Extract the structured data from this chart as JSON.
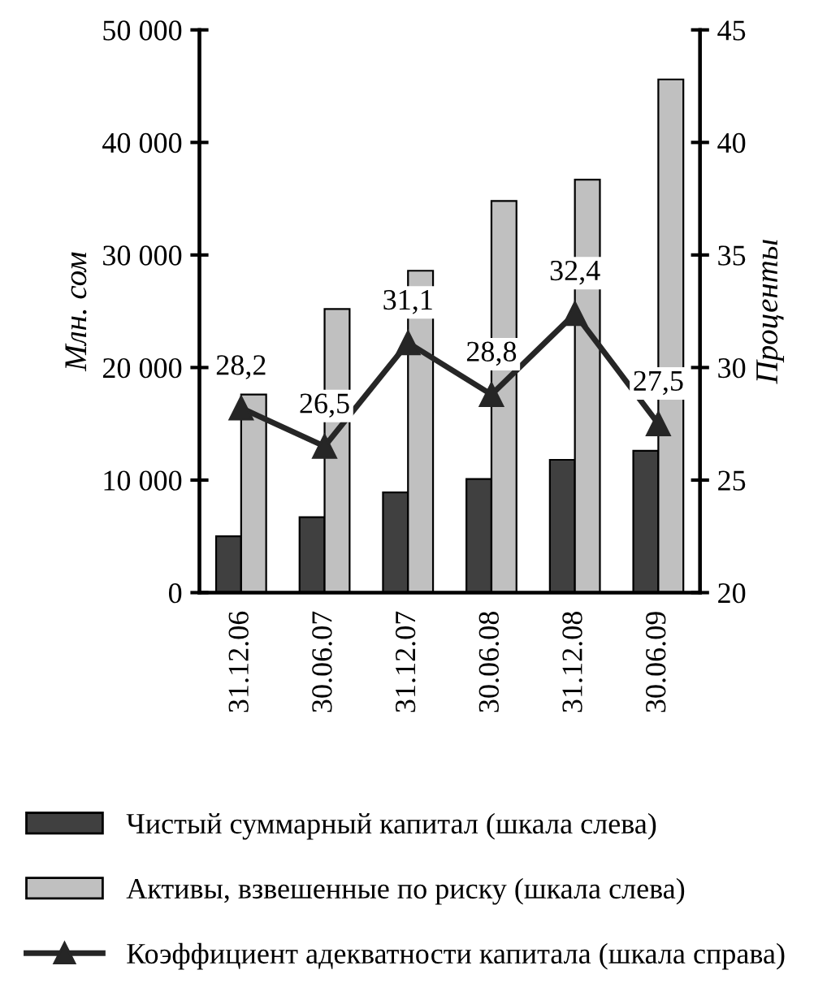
{
  "chart_data": {
    "type": "bar",
    "ylabel": "Млн. сом",
    "y2label": "Проценты",
    "categories": [
      "31.12.06",
      "30.06.07",
      "31.12.07",
      "30.06.08",
      "31.12.08",
      "30.06.09"
    ],
    "series": [
      {
        "name": "Чистый суммарный капитал (шкала слева)",
        "color": "#404040",
        "values": [
          5000,
          6700,
          8900,
          10100,
          11800,
          12600
        ]
      },
      {
        "name": "Активы, взвешенные по риску (шкала слева)",
        "color": "#c0c0c0",
        "values": [
          17600,
          25200,
          28600,
          34800,
          36700,
          45600
        ]
      },
      {
        "name": "Коэффициент адекватности капитала (шкала справа)",
        "type": "line",
        "axis": "y2",
        "color": "#262626",
        "marker": "triangle",
        "values": [
          28.2,
          26.5,
          31.1,
          28.8,
          32.4,
          27.5
        ],
        "value_labels": [
          "28,2",
          "26,5",
          "31,1",
          "28,8",
          "32,4",
          "27,5"
        ]
      }
    ],
    "ylim": [
      0,
      50000
    ],
    "yticks": [
      0,
      {
        "value": 10000,
        "label": "10 000"
      },
      {
        "value": 20000,
        "label": "20 000"
      },
      {
        "value": 30000,
        "label": "30 000"
      },
      {
        "value": 40000,
        "label": "40 000"
      },
      {
        "value": 50000,
        "label": "50 000"
      }
    ],
    "y2lim": [
      20,
      45
    ],
    "y2ticks": [
      20,
      25,
      30,
      35,
      40,
      45
    ],
    "grid": false,
    "legend": "bottom"
  }
}
